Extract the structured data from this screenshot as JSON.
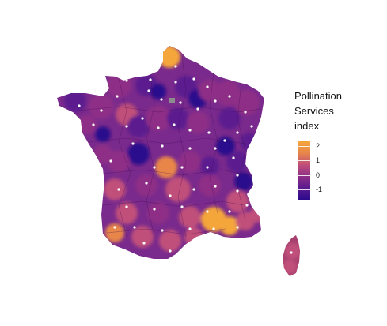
{
  "legend": {
    "title_lines": [
      "Pollination",
      "Services",
      "index"
    ],
    "ticks": [
      "2",
      "1",
      "0",
      "-1"
    ],
    "tick_values": [
      2,
      1,
      0,
      -1
    ],
    "range": [
      -1.7,
      2.3
    ],
    "colors": [
      "#2a0a8c",
      "#5b1a8f",
      "#8e2e86",
      "#c0507a",
      "#e8864a",
      "#f5a63a"
    ]
  },
  "map": {
    "region": "France",
    "missing_color": "#8c8c8c",
    "marker_color": "#ffffff"
  }
}
